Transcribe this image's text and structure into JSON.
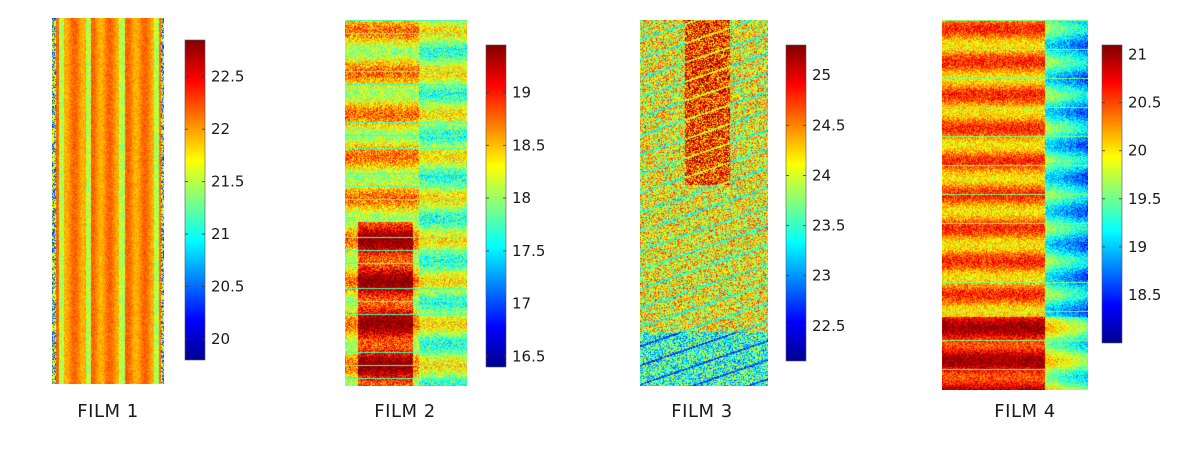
{
  "chart_data": [
    {
      "type": "heatmap",
      "title": "FILM 1",
      "colormap": "jet",
      "clim": [
        19.8,
        22.85
      ],
      "colorbar_ticks": [
        "20",
        "20.5",
        "21",
        "21.5",
        "22",
        "22.5"
      ],
      "ticks": [
        20,
        20.5,
        21,
        21.5,
        22,
        22.5
      ]
    },
    {
      "type": "heatmap",
      "title": "FILM 2",
      "colormap": "jet",
      "clim": [
        16.4,
        19.45
      ],
      "colorbar_ticks": [
        "16.5",
        "17",
        "17.5",
        "18",
        "18.5",
        "19"
      ],
      "ticks": [
        16.5,
        17,
        17.5,
        18,
        18.5,
        19
      ]
    },
    {
      "type": "heatmap",
      "title": "FILM 3",
      "colormap": "jet",
      "clim": [
        22.15,
        25.3
      ],
      "colorbar_ticks": [
        "22.5",
        "23",
        "23.5",
        "24",
        "24.5",
        "25"
      ],
      "ticks": [
        22.5,
        23,
        23.5,
        24,
        24.5,
        25
      ]
    },
    {
      "type": "heatmap",
      "title": "FILM 4",
      "colormap": "jet",
      "clim": [
        18.0,
        21.1
      ],
      "colorbar_ticks": [
        "18.5",
        "19",
        "19.5",
        "20",
        "20.5",
        "21"
      ],
      "ticks": [
        18.5,
        19,
        19.5,
        20,
        20.5,
        21
      ]
    }
  ]
}
